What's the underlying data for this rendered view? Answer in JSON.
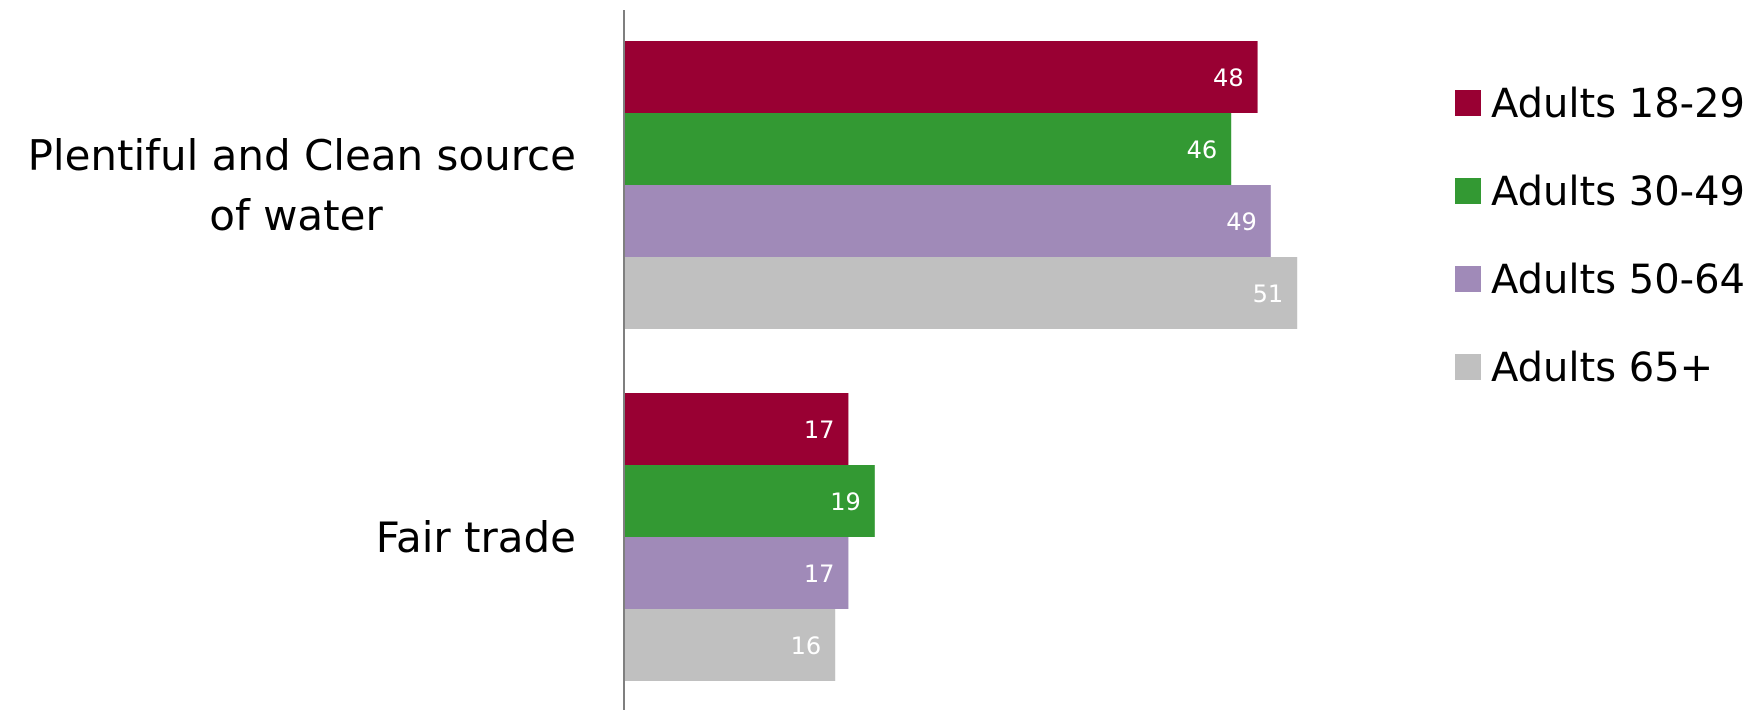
{
  "chart_data": {
    "type": "bar",
    "orientation": "horizontal",
    "title": "",
    "xlabel": "",
    "ylabel": "",
    "categories": [
      [
        "Plentiful and Clean source",
        "of water"
      ],
      [
        "Fair trade"
      ]
    ],
    "series": [
      {
        "name": "Adults 18-29",
        "color": "#990033",
        "values": [
          48,
          17
        ]
      },
      {
        "name": "Adults 30-49",
        "color": "#339933",
        "values": [
          46,
          19
        ]
      },
      {
        "name": "Adults 50-64",
        "color": "#a08ab8",
        "values": [
          49,
          17
        ]
      },
      {
        "name": "Adults 65+",
        "color": "#c0c0c0",
        "values": [
          51,
          16
        ]
      }
    ],
    "xlim": [
      0,
      100
    ],
    "grid": false,
    "data_labels": true,
    "legend_position": "right"
  }
}
